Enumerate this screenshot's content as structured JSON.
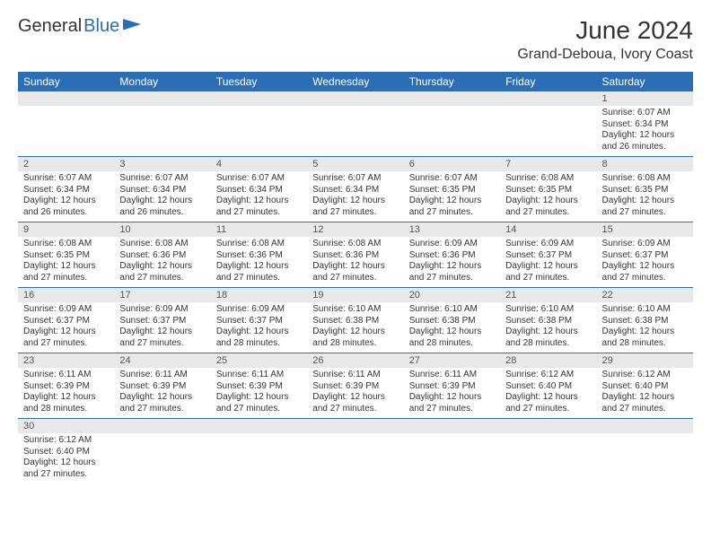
{
  "logo": {
    "text1": "General",
    "text2": "Blue"
  },
  "title": "June 2024",
  "location": "Grand-Deboua, Ivory Coast",
  "colors": {
    "header_bg": "#2a6fb5",
    "daynum_bg": "#e8e8e8",
    "border": "#2a6fb5"
  },
  "daynames": [
    "Sunday",
    "Monday",
    "Tuesday",
    "Wednesday",
    "Thursday",
    "Friday",
    "Saturday"
  ],
  "weeks": [
    [
      null,
      null,
      null,
      null,
      null,
      null,
      {
        "n": "1",
        "sr": "6:07 AM",
        "ss": "6:34 PM",
        "dl": "12 hours and 26 minutes."
      }
    ],
    [
      {
        "n": "2",
        "sr": "6:07 AM",
        "ss": "6:34 PM",
        "dl": "12 hours and 26 minutes."
      },
      {
        "n": "3",
        "sr": "6:07 AM",
        "ss": "6:34 PM",
        "dl": "12 hours and 26 minutes."
      },
      {
        "n": "4",
        "sr": "6:07 AM",
        "ss": "6:34 PM",
        "dl": "12 hours and 27 minutes."
      },
      {
        "n": "5",
        "sr": "6:07 AM",
        "ss": "6:34 PM",
        "dl": "12 hours and 27 minutes."
      },
      {
        "n": "6",
        "sr": "6:07 AM",
        "ss": "6:35 PM",
        "dl": "12 hours and 27 minutes."
      },
      {
        "n": "7",
        "sr": "6:08 AM",
        "ss": "6:35 PM",
        "dl": "12 hours and 27 minutes."
      },
      {
        "n": "8",
        "sr": "6:08 AM",
        "ss": "6:35 PM",
        "dl": "12 hours and 27 minutes."
      }
    ],
    [
      {
        "n": "9",
        "sr": "6:08 AM",
        "ss": "6:35 PM",
        "dl": "12 hours and 27 minutes."
      },
      {
        "n": "10",
        "sr": "6:08 AM",
        "ss": "6:36 PM",
        "dl": "12 hours and 27 minutes."
      },
      {
        "n": "11",
        "sr": "6:08 AM",
        "ss": "6:36 PM",
        "dl": "12 hours and 27 minutes."
      },
      {
        "n": "12",
        "sr": "6:08 AM",
        "ss": "6:36 PM",
        "dl": "12 hours and 27 minutes."
      },
      {
        "n": "13",
        "sr": "6:09 AM",
        "ss": "6:36 PM",
        "dl": "12 hours and 27 minutes."
      },
      {
        "n": "14",
        "sr": "6:09 AM",
        "ss": "6:37 PM",
        "dl": "12 hours and 27 minutes."
      },
      {
        "n": "15",
        "sr": "6:09 AM",
        "ss": "6:37 PM",
        "dl": "12 hours and 27 minutes."
      }
    ],
    [
      {
        "n": "16",
        "sr": "6:09 AM",
        "ss": "6:37 PM",
        "dl": "12 hours and 27 minutes."
      },
      {
        "n": "17",
        "sr": "6:09 AM",
        "ss": "6:37 PM",
        "dl": "12 hours and 27 minutes."
      },
      {
        "n": "18",
        "sr": "6:09 AM",
        "ss": "6:37 PM",
        "dl": "12 hours and 28 minutes."
      },
      {
        "n": "19",
        "sr": "6:10 AM",
        "ss": "6:38 PM",
        "dl": "12 hours and 28 minutes."
      },
      {
        "n": "20",
        "sr": "6:10 AM",
        "ss": "6:38 PM",
        "dl": "12 hours and 28 minutes."
      },
      {
        "n": "21",
        "sr": "6:10 AM",
        "ss": "6:38 PM",
        "dl": "12 hours and 28 minutes."
      },
      {
        "n": "22",
        "sr": "6:10 AM",
        "ss": "6:38 PM",
        "dl": "12 hours and 28 minutes."
      }
    ],
    [
      {
        "n": "23",
        "sr": "6:11 AM",
        "ss": "6:39 PM",
        "dl": "12 hours and 28 minutes."
      },
      {
        "n": "24",
        "sr": "6:11 AM",
        "ss": "6:39 PM",
        "dl": "12 hours and 27 minutes."
      },
      {
        "n": "25",
        "sr": "6:11 AM",
        "ss": "6:39 PM",
        "dl": "12 hours and 27 minutes."
      },
      {
        "n": "26",
        "sr": "6:11 AM",
        "ss": "6:39 PM",
        "dl": "12 hours and 27 minutes."
      },
      {
        "n": "27",
        "sr": "6:11 AM",
        "ss": "6:39 PM",
        "dl": "12 hours and 27 minutes."
      },
      {
        "n": "28",
        "sr": "6:12 AM",
        "ss": "6:40 PM",
        "dl": "12 hours and 27 minutes."
      },
      {
        "n": "29",
        "sr": "6:12 AM",
        "ss": "6:40 PM",
        "dl": "12 hours and 27 minutes."
      }
    ],
    [
      {
        "n": "30",
        "sr": "6:12 AM",
        "ss": "6:40 PM",
        "dl": "12 hours and 27 minutes."
      },
      null,
      null,
      null,
      null,
      null,
      null
    ]
  ],
  "labels": {
    "sunrise": "Sunrise:",
    "sunset": "Sunset:",
    "daylight": "Daylight:"
  }
}
